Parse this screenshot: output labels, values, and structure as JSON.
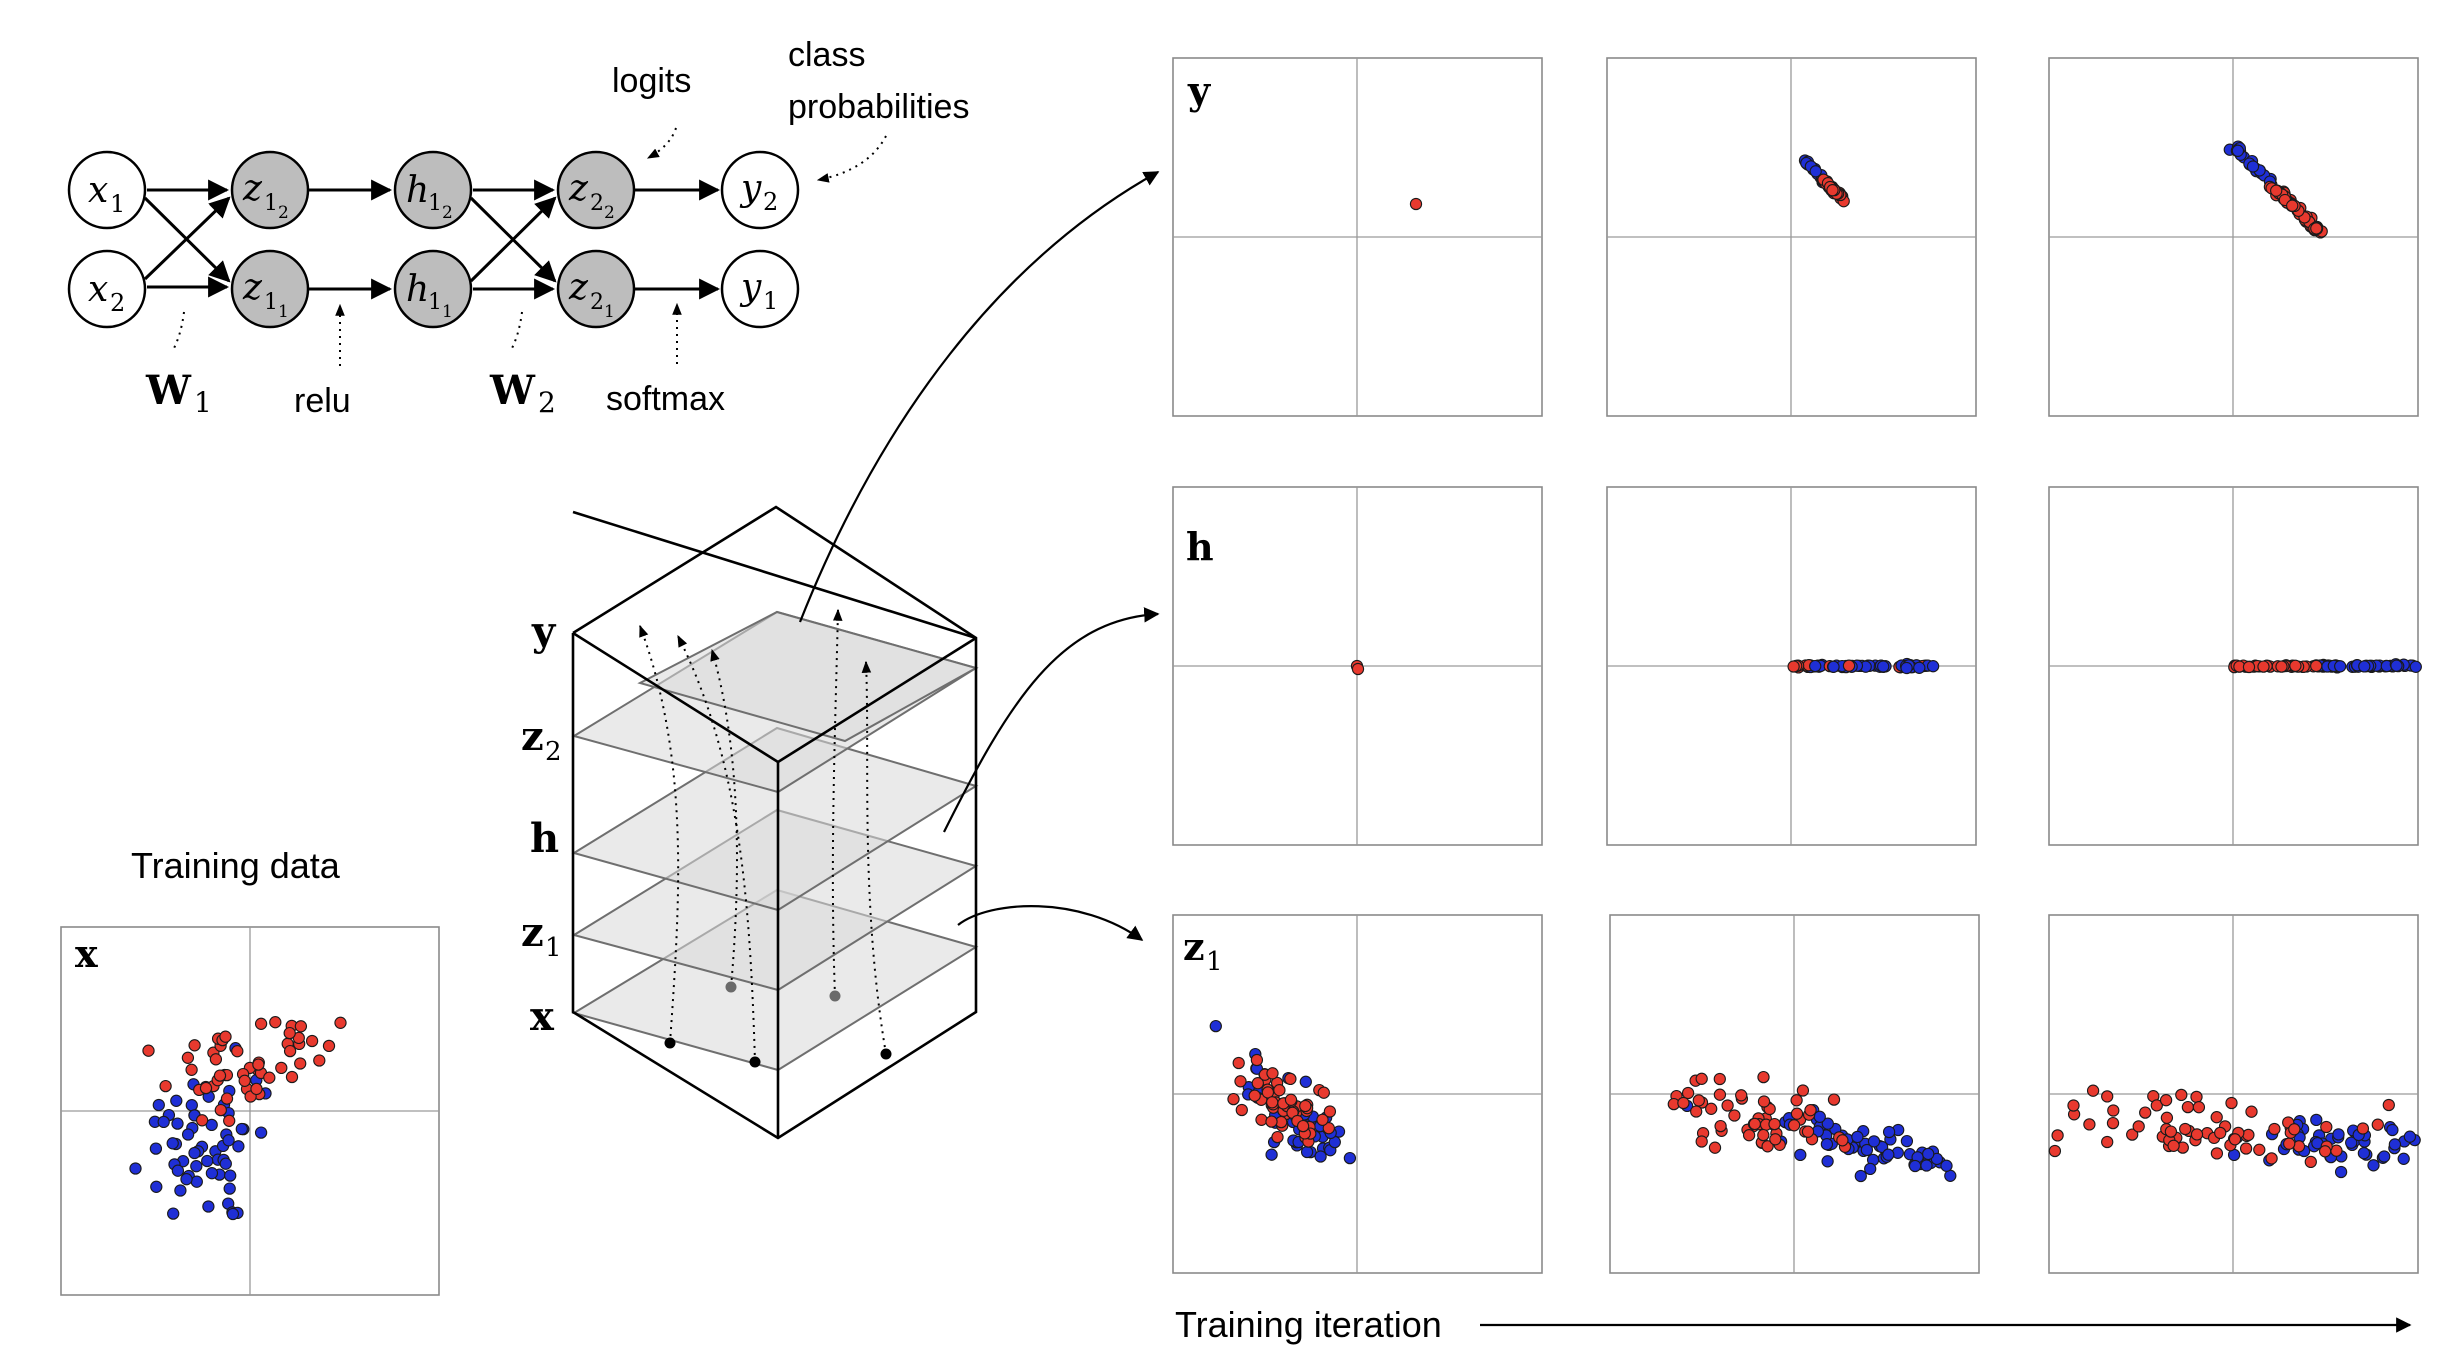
{
  "network": {
    "annotations": {
      "logits": "logits",
      "class_probabilities_line1": "class",
      "class_probabilities_line2": "probabilities",
      "relu": "relu",
      "softmax": "softmax",
      "W1": "W",
      "W1_sub": "1",
      "W2": "W",
      "W2_sub": "2"
    },
    "nodes": {
      "x1": {
        "base": "x",
        "sub": "1"
      },
      "x2": {
        "base": "x",
        "sub": "2"
      },
      "z1_2": {
        "base": "z",
        "sub": "1",
        "subsub": "2"
      },
      "z1_1": {
        "base": "z",
        "sub": "1",
        "subsub": "1"
      },
      "h1_2": {
        "base": "h",
        "sub": "1",
        "subsub": "2"
      },
      "h1_1": {
        "base": "h",
        "sub": "1",
        "subsub": "1"
      },
      "z2_2": {
        "base": "z",
        "sub": "2",
        "subsub": "2"
      },
      "z2_1": {
        "base": "z",
        "sub": "2",
        "subsub": "1"
      },
      "y2": {
        "base": "y",
        "sub": "2"
      },
      "y1": {
        "base": "y",
        "sub": "1"
      }
    }
  },
  "cube": {
    "labels": {
      "y": "y",
      "z2": "z",
      "z2_sub": "2",
      "h": "h",
      "z1": "z",
      "z1_sub": "1",
      "x": "x"
    }
  },
  "training_data": {
    "title": "Training data",
    "panel_label": "x"
  },
  "panels": {
    "row_labels": {
      "y": "y",
      "h": "h",
      "z1": "z",
      "z1_sub": "1"
    }
  },
  "footer": {
    "training_iteration": "Training iteration"
  },
  "colors": {
    "class_red": "#e8392e",
    "class_blue": "#1f2fd6",
    "hidden_node": "#bdbdbd"
  }
}
